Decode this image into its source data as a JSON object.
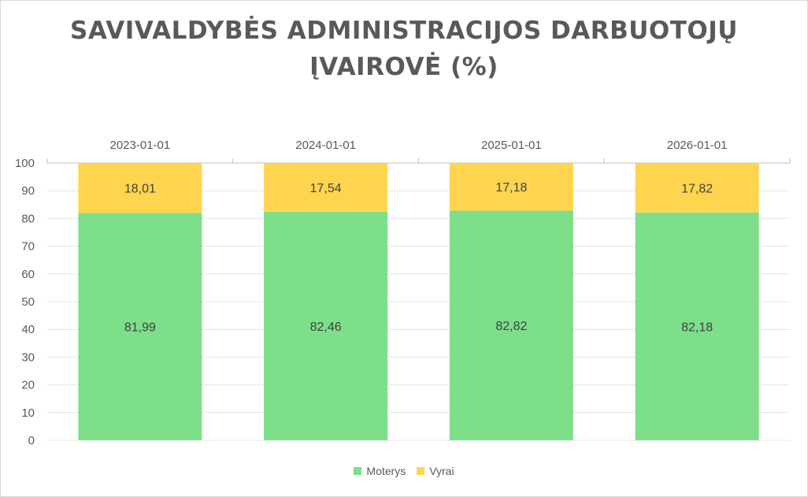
{
  "chart_data": {
    "type": "bar",
    "stacked": true,
    "title": "SAVIVALDYBĖS ADMINISTRACIJOS DARBUOTOJŲ ĮVAIROVĖ (%)",
    "title_lines": [
      "SAVIVALDYBĖS ADMINISTRACIJOS DARBUOTOJŲ",
      "ĮVAIROVĖ (%)"
    ],
    "categories": [
      "2023-01-01",
      "2024-01-01",
      "2025-01-01",
      "2026-01-01"
    ],
    "category_axis_position": "top",
    "series": [
      {
        "name": "Moterys",
        "values": [
          81.99,
          82.46,
          82.82,
          82.18
        ],
        "labels": [
          "81,99",
          "82,46",
          "82,82",
          "82,18"
        ],
        "color": "#7ddf8a"
      },
      {
        "name": "Vyrai",
        "values": [
          18.01,
          17.54,
          17.18,
          17.82
        ],
        "labels": [
          "18,01",
          "17,54",
          "17,18",
          "17,82"
        ],
        "color": "#ffd54f"
      }
    ],
    "ylim": [
      0,
      100
    ],
    "yticks": [
      0,
      10,
      20,
      30,
      40,
      50,
      60,
      70,
      80,
      90,
      100
    ],
    "xlabel": "",
    "ylabel": "",
    "grid": true,
    "legend_position": "bottom",
    "colors": {
      "grid": "#e6e6e6",
      "axis": "#bfbfbf",
      "text": "#595959",
      "label": "#404040"
    }
  }
}
